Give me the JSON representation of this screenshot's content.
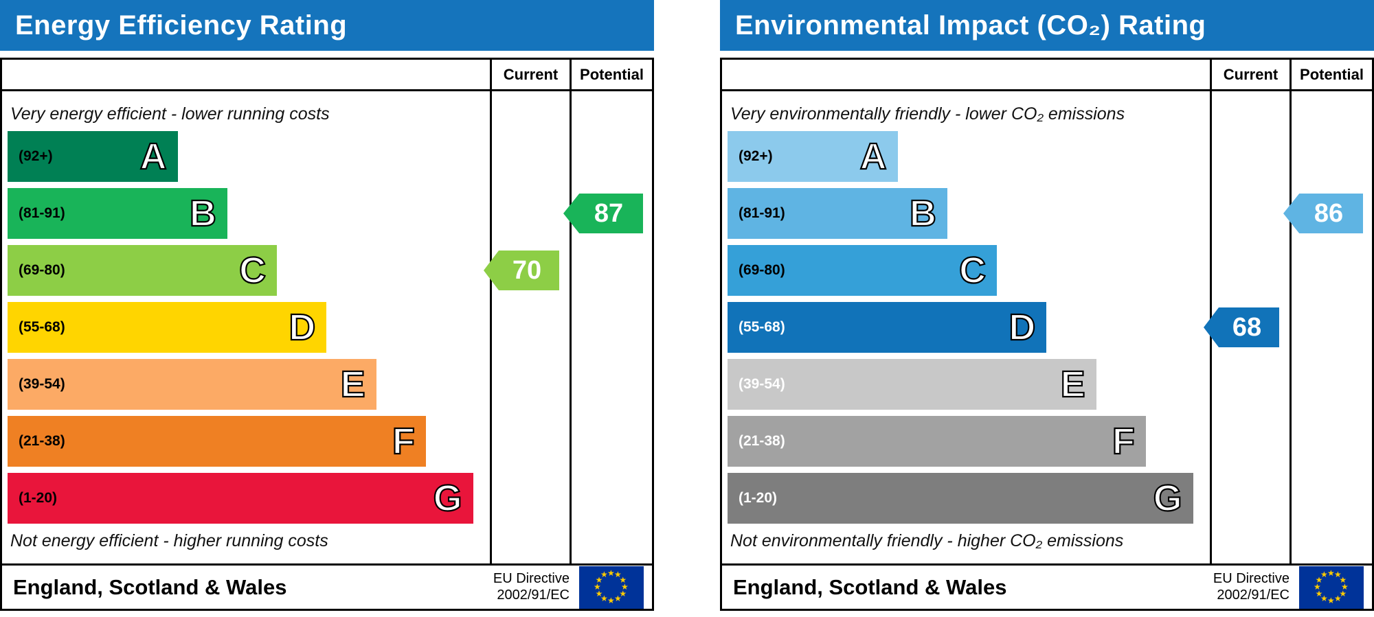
{
  "colors": {
    "header_bg": "#1574bc",
    "header_text": "#ffffff",
    "eu_flag_bg": "#003399",
    "eu_star": "#ffcc00"
  },
  "chart_data": [
    {
      "type": "bar",
      "title": "Energy Efficiency Rating",
      "columns": {
        "current": "Current",
        "potential": "Potential"
      },
      "top_caption": "Very energy efficient - lower running costs",
      "bottom_caption": "Not energy efficient - higher running costs",
      "bands": [
        {
          "letter": "A",
          "range": "(92+)",
          "color": "#008054",
          "label_color": "#000000",
          "width_pct": 36
        },
        {
          "letter": "B",
          "range": "(81-91)",
          "color": "#19b459",
          "label_color": "#000000",
          "width_pct": 46.5
        },
        {
          "letter": "C",
          "range": "(69-80)",
          "color": "#8dce46",
          "label_color": "#000000",
          "width_pct": 57
        },
        {
          "letter": "D",
          "range": "(55-68)",
          "color": "#ffd500",
          "label_color": "#000000",
          "width_pct": 67.5
        },
        {
          "letter": "E",
          "range": "(39-54)",
          "color": "#fcaa65",
          "label_color": "#000000",
          "width_pct": 78
        },
        {
          "letter": "F",
          "range": "(21-38)",
          "color": "#ef8023",
          "label_color": "#000000",
          "width_pct": 88.5
        },
        {
          "letter": "G",
          "range": "(1-20)",
          "color": "#e9153b",
          "label_color": "#000000",
          "width_pct": 98.5
        }
      ],
      "current": {
        "value": "70",
        "band": "C",
        "color": "#8dce46"
      },
      "potential": {
        "value": "87",
        "band": "B",
        "color": "#19b459"
      },
      "footer": {
        "region": "England, Scotland & Wales",
        "directive": [
          "EU Directive",
          "2002/91/EC"
        ]
      }
    },
    {
      "type": "bar",
      "title": "Environmental Impact (CO₂) Rating",
      "columns": {
        "current": "Current",
        "potential": "Potential"
      },
      "top_caption": "Very environmentally friendly - lower CO₂ emissions",
      "bottom_caption": "Not environmentally friendly - higher CO₂ emissions",
      "bands": [
        {
          "letter": "A",
          "range": "(92+)",
          "color": "#8ccaec",
          "label_color": "#000000",
          "width_pct": 36
        },
        {
          "letter": "B",
          "range": "(81-91)",
          "color": "#5fb4e3",
          "label_color": "#000000",
          "width_pct": 46.5
        },
        {
          "letter": "C",
          "range": "(69-80)",
          "color": "#35a0d8",
          "label_color": "#000000",
          "width_pct": 57
        },
        {
          "letter": "D",
          "range": "(55-68)",
          "color": "#1173b9",
          "label_color": "#ffffff",
          "width_pct": 67.5
        },
        {
          "letter": "E",
          "range": "(39-54)",
          "color": "#c8c8c8",
          "label_color": "#ffffff",
          "width_pct": 78
        },
        {
          "letter": "F",
          "range": "(21-38)",
          "color": "#a2a2a2",
          "label_color": "#ffffff",
          "width_pct": 88.5
        },
        {
          "letter": "G",
          "range": "(1-20)",
          "color": "#7e7e7e",
          "label_color": "#ffffff",
          "width_pct": 98.5
        }
      ],
      "current": {
        "value": "68",
        "band": "D",
        "color": "#1173b9"
      },
      "potential": {
        "value": "86",
        "band": "B",
        "color": "#5fb4e3"
      },
      "footer": {
        "region": "England, Scotland & Wales",
        "directive": [
          "EU Directive",
          "2002/91/EC"
        ]
      }
    }
  ]
}
